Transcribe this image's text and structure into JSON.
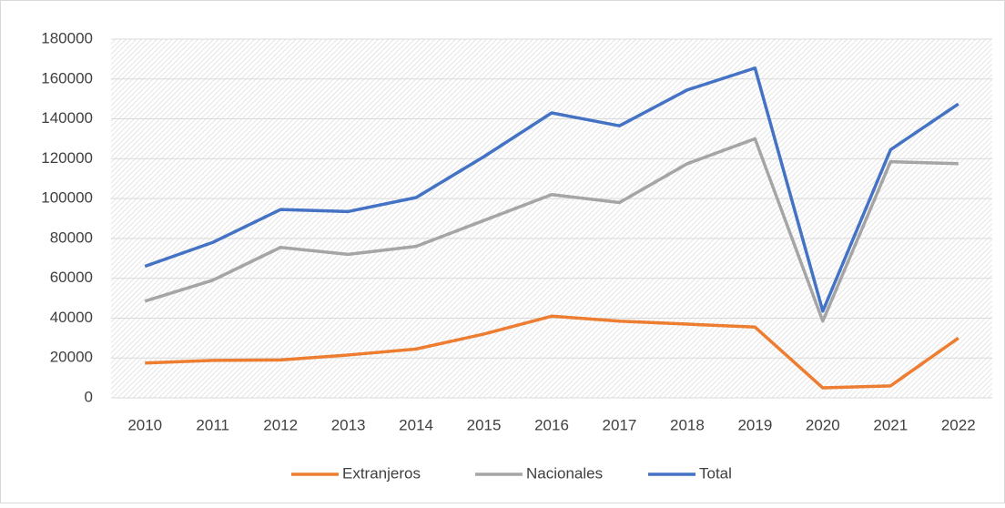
{
  "chart_data": {
    "type": "line",
    "categories": [
      "2010",
      "2011",
      "2012",
      "2013",
      "2014",
      "2015",
      "2016",
      "2017",
      "2018",
      "2019",
      "2020",
      "2021",
      "2022"
    ],
    "series": [
      {
        "name": "Extranjeros",
        "color": "#ed7d31",
        "values": [
          17500,
          18800,
          19000,
          21500,
          24500,
          32000,
          41000,
          38500,
          37000,
          35500,
          5000,
          6000,
          30000
        ]
      },
      {
        "name": "Nacionales",
        "color": "#a5a5a5",
        "values": [
          48500,
          59000,
          75500,
          72000,
          76000,
          89000,
          102000,
          98000,
          117500,
          130000,
          38500,
          118500,
          117500
        ]
      },
      {
        "name": "Total",
        "color": "#4472c4",
        "values": [
          66000,
          78000,
          94500,
          93500,
          100500,
          121000,
          143000,
          136500,
          154500,
          165500,
          43500,
          124500,
          147500
        ]
      }
    ],
    "ylim": [
      0,
      180000
    ],
    "yticks": [
      0,
      20000,
      40000,
      60000,
      80000,
      100000,
      120000,
      140000,
      160000,
      180000
    ],
    "grid": true,
    "legend": "bottom"
  }
}
